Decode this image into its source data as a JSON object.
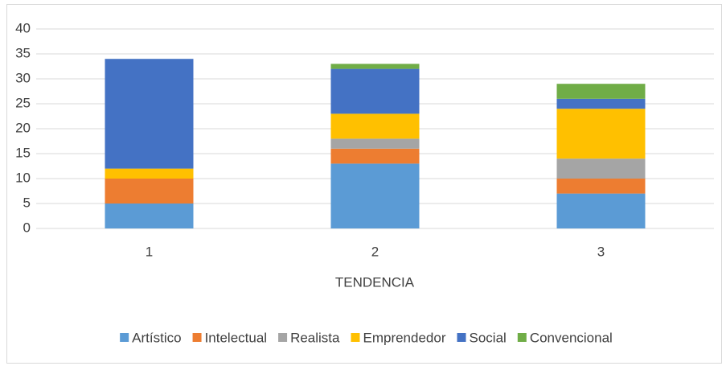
{
  "chart_data": {
    "type": "stacked_bar",
    "categories": [
      "1",
      "2",
      "3"
    ],
    "x_label": "TENDENCIA",
    "series": [
      {
        "name": "Artístico",
        "color": "#5b9bd5",
        "values": [
          5,
          13,
          7
        ]
      },
      {
        "name": "Intelectual",
        "color": "#ed7d31",
        "values": [
          5,
          3,
          3
        ]
      },
      {
        "name": "Realista",
        "color": "#a5a5a5",
        "values": [
          0,
          2,
          4
        ]
      },
      {
        "name": "Emprendedor",
        "color": "#ffc000",
        "values": [
          2,
          5,
          10
        ]
      },
      {
        "name": "Social",
        "color": "#4472c4",
        "values": [
          22,
          9,
          2
        ]
      },
      {
        "name": "Convencional",
        "color": "#70ad47",
        "values": [
          0,
          1,
          3
        ]
      }
    ],
    "ylim": [
      0,
      40
    ],
    "yticks": [
      0,
      5,
      10,
      15,
      20,
      25,
      30,
      35,
      40
    ],
    "grid": true,
    "legend": "bottom"
  }
}
